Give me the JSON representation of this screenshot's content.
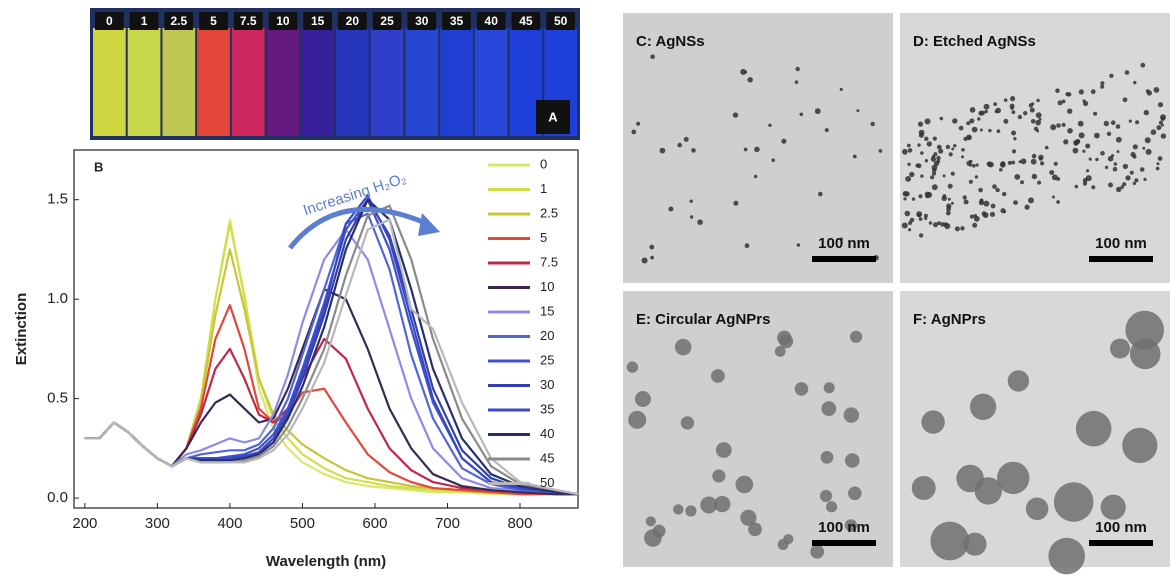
{
  "vials": {
    "labels": [
      "0",
      "1",
      "2.5",
      "5",
      "7.5",
      "10",
      "15",
      "20",
      "25",
      "30",
      "35",
      "40",
      "45",
      "50"
    ],
    "colors": [
      "#d8e040",
      "#d0e048",
      "#c8d050",
      "#f04838",
      "#d82860",
      "#6a1880",
      "#3a20a0",
      "#2838c0",
      "#3040d0",
      "#2848d8",
      "#2040d8",
      "#2848e0",
      "#2040e0",
      "#2040e0"
    ],
    "panel_label": "A"
  },
  "chart_data": {
    "type": "line",
    "panel_label": "B",
    "annotation": "Increasing H₂O₂",
    "x_label": "Wavelength (nm)",
    "y_label": "Extinction",
    "xlim": [
      185,
      880
    ],
    "ylim": [
      -0.05,
      1.75
    ],
    "xticks": [
      200,
      300,
      400,
      500,
      600,
      700,
      800
    ],
    "yticks": [
      {
        "value": 0,
        "label": "0.0"
      },
      0.5,
      {
        "value": 1,
        "label": "1.0"
      },
      1.5
    ],
    "x": [
      200,
      220,
      240,
      260,
      280,
      300,
      320,
      340,
      360,
      380,
      400,
      420,
      440,
      460,
      480,
      500,
      530,
      560,
      590,
      620,
      650,
      680,
      720,
      760,
      800,
      850,
      880
    ],
    "series": [
      {
        "name": "0",
        "color": "#d8e86a",
        "values": [
          0.3,
          0.3,
          0.38,
          0.33,
          0.26,
          0.2,
          0.16,
          0.25,
          0.5,
          1.0,
          1.4,
          1.0,
          0.55,
          0.35,
          0.25,
          0.18,
          0.12,
          0.08,
          0.06,
          0.05,
          0.04,
          0.03,
          0.03,
          0.02,
          0.02,
          0.02,
          0.02
        ]
      },
      {
        "name": "1",
        "color": "#cfe04a",
        "values": [
          0.3,
          0.3,
          0.38,
          0.33,
          0.26,
          0.2,
          0.16,
          0.25,
          0.5,
          1.0,
          1.38,
          1.02,
          0.6,
          0.4,
          0.3,
          0.22,
          0.15,
          0.1,
          0.08,
          0.06,
          0.05,
          0.04,
          0.03,
          0.03,
          0.02,
          0.02,
          0.02
        ]
      },
      {
        "name": "2.5",
        "color": "#c9c43a",
        "values": [
          0.3,
          0.3,
          0.38,
          0.33,
          0.26,
          0.2,
          0.16,
          0.25,
          0.48,
          0.92,
          1.25,
          0.95,
          0.6,
          0.42,
          0.34,
          0.27,
          0.2,
          0.14,
          0.1,
          0.08,
          0.06,
          0.05,
          0.04,
          0.03,
          0.03,
          0.02,
          0.02
        ]
      },
      {
        "name": "5",
        "color": "#e0483c",
        "values": [
          0.3,
          0.3,
          0.38,
          0.33,
          0.26,
          0.2,
          0.16,
          0.25,
          0.45,
          0.8,
          0.97,
          0.75,
          0.45,
          0.38,
          0.42,
          0.53,
          0.55,
          0.38,
          0.22,
          0.13,
          0.08,
          0.05,
          0.04,
          0.03,
          0.02,
          0.02,
          0.02
        ]
      },
      {
        "name": "7.5",
        "color": "#c02848",
        "values": [
          0.3,
          0.3,
          0.38,
          0.33,
          0.26,
          0.2,
          0.16,
          0.25,
          0.42,
          0.65,
          0.75,
          0.6,
          0.42,
          0.38,
          0.45,
          0.6,
          0.8,
          0.7,
          0.45,
          0.25,
          0.14,
          0.08,
          0.05,
          0.04,
          0.03,
          0.02,
          0.02
        ]
      },
      {
        "name": "10",
        "color": "#3a2850",
        "values": [
          0.3,
          0.3,
          0.38,
          0.33,
          0.26,
          0.2,
          0.16,
          0.25,
          0.38,
          0.48,
          0.52,
          0.45,
          0.38,
          0.4,
          0.55,
          0.75,
          1.05,
          1.0,
          0.75,
          0.45,
          0.25,
          0.12,
          0.06,
          0.04,
          0.03,
          0.02,
          0.02
        ]
      },
      {
        "name": "15",
        "color": "#8c8ce0",
        "values": [
          0.3,
          0.3,
          0.38,
          0.33,
          0.26,
          0.2,
          0.16,
          0.22,
          0.24,
          0.27,
          0.3,
          0.28,
          0.3,
          0.42,
          0.62,
          0.88,
          1.2,
          1.35,
          1.2,
          0.85,
          0.5,
          0.25,
          0.1,
          0.05,
          0.04,
          0.03,
          0.02
        ]
      },
      {
        "name": "20",
        "color": "#5066d8",
        "values": [
          0.3,
          0.3,
          0.38,
          0.33,
          0.26,
          0.2,
          0.16,
          0.2,
          0.22,
          0.23,
          0.24,
          0.24,
          0.27,
          0.35,
          0.5,
          0.72,
          1.05,
          1.38,
          1.43,
          1.15,
          0.72,
          0.4,
          0.15,
          0.07,
          0.04,
          0.03,
          0.02
        ]
      },
      {
        "name": "25",
        "color": "#4050c8",
        "values": [
          0.3,
          0.3,
          0.38,
          0.33,
          0.26,
          0.2,
          0.16,
          0.2,
          0.2,
          0.2,
          0.21,
          0.22,
          0.25,
          0.32,
          0.45,
          0.65,
          0.98,
          1.35,
          1.5,
          1.25,
          0.85,
          0.48,
          0.2,
          0.08,
          0.05,
          0.03,
          0.02
        ]
      },
      {
        "name": "30",
        "color": "#3040b0",
        "values": [
          0.3,
          0.3,
          0.38,
          0.33,
          0.26,
          0.2,
          0.16,
          0.2,
          0.2,
          0.2,
          0.2,
          0.21,
          0.23,
          0.3,
          0.42,
          0.6,
          0.92,
          1.3,
          1.5,
          1.32,
          0.95,
          0.55,
          0.24,
          0.1,
          0.05,
          0.03,
          0.02
        ]
      },
      {
        "name": "35",
        "color": "#3a48c8",
        "values": [
          0.3,
          0.3,
          0.38,
          0.33,
          0.26,
          0.2,
          0.16,
          0.2,
          0.2,
          0.2,
          0.2,
          0.21,
          0.23,
          0.3,
          0.43,
          0.62,
          0.95,
          1.38,
          1.52,
          1.3,
          0.9,
          0.5,
          0.2,
          0.08,
          0.05,
          0.03,
          0.02
        ]
      },
      {
        "name": "40",
        "color": "#28306a",
        "values": [
          0.3,
          0.3,
          0.38,
          0.33,
          0.26,
          0.2,
          0.16,
          0.2,
          0.19,
          0.19,
          0.19,
          0.2,
          0.22,
          0.28,
          0.4,
          0.56,
          0.86,
          1.25,
          1.5,
          1.4,
          1.05,
          0.65,
          0.3,
          0.12,
          0.06,
          0.03,
          0.02
        ]
      },
      {
        "name": "45",
        "color": "#8a8a8a",
        "values": [
          0.3,
          0.3,
          0.38,
          0.33,
          0.26,
          0.2,
          0.16,
          0.2,
          0.18,
          0.18,
          0.18,
          0.19,
          0.21,
          0.26,
          0.36,
          0.5,
          0.75,
          1.12,
          1.42,
          1.47,
          1.2,
          0.8,
          0.4,
          0.16,
          0.07,
          0.04,
          0.02
        ]
      },
      {
        "name": "50",
        "color": "#b8b8b8",
        "values": [
          0.3,
          0.3,
          0.38,
          0.33,
          0.26,
          0.2,
          0.16,
          0.2,
          0.18,
          0.18,
          0.18,
          0.18,
          0.2,
          0.24,
          0.32,
          0.45,
          0.68,
          1.02,
          1.35,
          1.4,
          0.95,
          0.85,
          0.48,
          0.2,
          0.08,
          0.04,
          0.02
        ]
      }
    ]
  },
  "panels": [
    {
      "label": "C: AgNSs",
      "scale": "100 nm"
    },
    {
      "label": "D: Etched AgNSs",
      "scale": "100 nm"
    },
    {
      "label": "E: Circular AgNPrs",
      "scale": "100 nm"
    },
    {
      "label": "F: AgNPrs",
      "scale": "100 nm"
    }
  ]
}
